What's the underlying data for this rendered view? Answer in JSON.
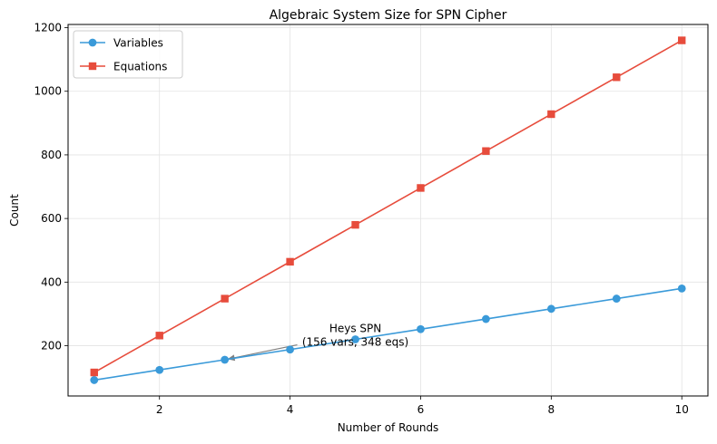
{
  "chart_data": {
    "type": "line",
    "title": "Algebraic System Size for SPN Cipher",
    "xlabel": "Number of Rounds",
    "ylabel": "Count",
    "xlim": [
      0.6,
      10.4
    ],
    "ylim": [
      42,
      1210
    ],
    "xticks": [
      2,
      4,
      6,
      8,
      10
    ],
    "yticks": [
      200,
      400,
      600,
      800,
      1000,
      1200
    ],
    "x": [
      1,
      2,
      3,
      4,
      5,
      6,
      7,
      8,
      9,
      10
    ],
    "grid": true,
    "legend_position": "top-left",
    "series": [
      {
        "name": "Variables",
        "color": "#3a9ad9",
        "marker": "circle",
        "values": [
          92,
          124,
          156,
          188,
          220,
          252,
          284,
          316,
          348,
          380
        ]
      },
      {
        "name": "Equations",
        "color": "#e74c3c",
        "marker": "square",
        "values": [
          116,
          232,
          348,
          464,
          580,
          696,
          812,
          928,
          1044,
          1160
        ]
      }
    ],
    "annotation": {
      "lines": [
        "Heys SPN",
        "(156 vars, 348 eqs)"
      ],
      "point": {
        "x": 3,
        "y": 156
      },
      "text_at": {
        "x": 5.0,
        "y": 200
      },
      "arrow_color": "#808080"
    }
  }
}
